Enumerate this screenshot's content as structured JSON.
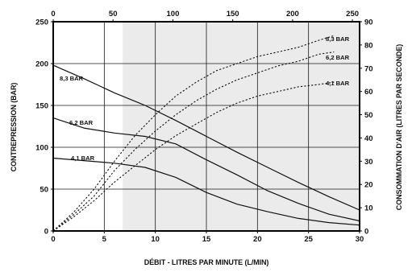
{
  "chart_data": {
    "type": "line",
    "xlabel": "DÉBIT - LITRES PAR MINUTE (L/MIN)",
    "ylabel_left": "CONTREPRESSION (BAR)",
    "ylabel_right": "CONSOMMATION D'AIR (LITRES PAR SECONDE)",
    "x_bottom": {
      "min": 0,
      "max": 30,
      "ticks": [
        "0",
        "5",
        "10",
        "15",
        "20",
        "25",
        "30"
      ]
    },
    "x_top": {
      "min": 0,
      "max": 256,
      "ticks": [
        "0",
        "50",
        "100",
        "150",
        "200",
        "250"
      ]
    },
    "y_left": {
      "min": 0,
      "max": 250,
      "ticks": [
        "0",
        "50",
        "100",
        "150",
        "200",
        "250"
      ]
    },
    "y_right": {
      "min": 0,
      "max": 90,
      "ticks": [
        "0",
        "10",
        "20",
        "30",
        "40",
        "50",
        "60",
        "70",
        "80",
        "90"
      ]
    },
    "shaded_region_x": [
      6.8,
      30
    ],
    "grid": true,
    "series": [
      {
        "name": "8,3 BAR",
        "axis": "left",
        "style": "solid",
        "points": [
          [
            0,
            198
          ],
          [
            3,
            182
          ],
          [
            6,
            165
          ],
          [
            9,
            150
          ],
          [
            12,
            132
          ],
          [
            15,
            113
          ],
          [
            18,
            94
          ],
          [
            21,
            76
          ],
          [
            24,
            58
          ],
          [
            27,
            41
          ],
          [
            30,
            25
          ]
        ]
      },
      {
        "name": "6,2 BAR",
        "axis": "left",
        "style": "solid",
        "points": [
          [
            0,
            135
          ],
          [
            3,
            123
          ],
          [
            6,
            117
          ],
          [
            9,
            113
          ],
          [
            12,
            104
          ],
          [
            15,
            85
          ],
          [
            18,
            67
          ],
          [
            21,
            48
          ],
          [
            24,
            33
          ],
          [
            27,
            20
          ],
          [
            30,
            12
          ]
        ]
      },
      {
        "name": "4,1 BAR",
        "axis": "left",
        "style": "solid",
        "points": [
          [
            0,
            87
          ],
          [
            3,
            84
          ],
          [
            6,
            81
          ],
          [
            9,
            76
          ],
          [
            12,
            64
          ],
          [
            15,
            46
          ],
          [
            18,
            32
          ],
          [
            21,
            23
          ],
          [
            24,
            15
          ],
          [
            27,
            10
          ],
          [
            30,
            7
          ]
        ]
      },
      {
        "name": "8,3 BAR",
        "axis": "right",
        "style": "dashed",
        "points": [
          [
            0,
            0
          ],
          [
            2,
            8
          ],
          [
            4,
            18
          ],
          [
            6,
            30
          ],
          [
            8,
            41
          ],
          [
            10,
            50
          ],
          [
            12,
            58
          ],
          [
            14,
            64
          ],
          [
            16,
            69
          ],
          [
            18,
            72
          ],
          [
            20,
            75
          ],
          [
            22,
            77
          ],
          [
            24,
            79
          ],
          [
            26,
            82
          ],
          [
            27.5,
            84
          ]
        ]
      },
      {
        "name": "6,2 BAR",
        "axis": "right",
        "style": "dashed",
        "points": [
          [
            0,
            0
          ],
          [
            2,
            7
          ],
          [
            4,
            15
          ],
          [
            6,
            26
          ],
          [
            8,
            35
          ],
          [
            10,
            43
          ],
          [
            12,
            50
          ],
          [
            14,
            56
          ],
          [
            16,
            61
          ],
          [
            18,
            65
          ],
          [
            20,
            68
          ],
          [
            22,
            71
          ],
          [
            24,
            73
          ],
          [
            26,
            76
          ],
          [
            27.5,
            77
          ]
        ]
      },
      {
        "name": "4,1 BAR",
        "axis": "right",
        "style": "dashed",
        "points": [
          [
            0,
            0
          ],
          [
            2,
            6
          ],
          [
            4,
            13
          ],
          [
            6,
            21
          ],
          [
            8,
            28
          ],
          [
            10,
            35
          ],
          [
            12,
            41
          ],
          [
            14,
            46
          ],
          [
            16,
            51
          ],
          [
            18,
            55
          ],
          [
            20,
            58
          ],
          [
            22,
            60
          ],
          [
            24,
            62
          ],
          [
            26,
            63
          ],
          [
            27.5,
            64
          ]
        ]
      }
    ],
    "labels": [
      {
        "text": "8,3 BAR",
        "series_index": 0
      },
      {
        "text": "6,2 BAR",
        "series_index": 1
      },
      {
        "text": "4,1 BAR",
        "series_index": 2
      },
      {
        "text": "8,3 BAR",
        "series_index": 3
      },
      {
        "text": "6,2 BAR",
        "series_index": 4
      },
      {
        "text": "4,1 BAR",
        "series_index": 5
      }
    ]
  }
}
